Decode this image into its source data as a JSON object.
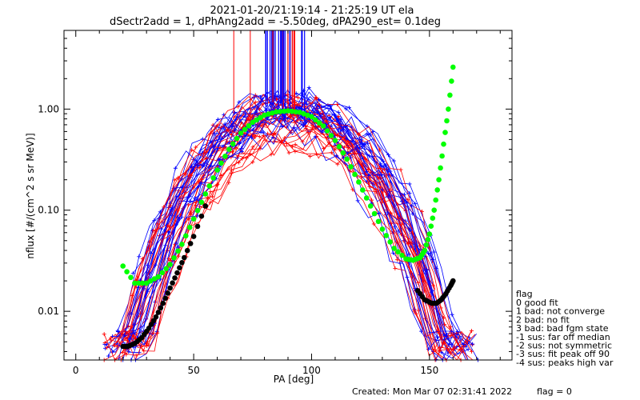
{
  "chart_data": {
    "type": "line",
    "title_line1": "2021-01-20/21:19:14 - 21:25:19 UT ela",
    "title_line2": "dSectr2add = 1, dPhAng2add = -5.50deg, dPA290_est=    0.1deg",
    "xlabel": "PA [deg]",
    "ylabel": "nflux [#/(cm^2 s sr MeV)]",
    "xlim": [
      -5,
      185
    ],
    "ylim": [
      0.0033,
      6.0
    ],
    "yscale": "log",
    "x_ticks": [
      0,
      50,
      100,
      150
    ],
    "x_tick_labels": [
      "0",
      "50",
      "100",
      "150"
    ],
    "y_ticks": [
      0.01,
      0.1,
      1.0
    ],
    "y_tick_labels": [
      "0.01",
      "0.10",
      "1.00"
    ],
    "colors": {
      "red_traces": "#ff0000",
      "blue_traces": "#0000ff",
      "green_fit": "#00ff00",
      "black_fit": "#000000"
    },
    "series": [
      {
        "color_name": "green",
        "style": "dots",
        "x": [
          20,
          25,
          30,
          35,
          40,
          45,
          50,
          55,
          60,
          65,
          70,
          75,
          80,
          85,
          90,
          95,
          100,
          105,
          110,
          115,
          120,
          125,
          130,
          135,
          140,
          143,
          146,
          148,
          150,
          152,
          154,
          156,
          158,
          160
        ],
        "y": [
          0.028,
          0.019,
          0.019,
          0.022,
          0.029,
          0.046,
          0.082,
          0.145,
          0.25,
          0.4,
          0.58,
          0.74,
          0.87,
          0.94,
          0.96,
          0.93,
          0.84,
          0.68,
          0.49,
          0.32,
          0.19,
          0.11,
          0.065,
          0.042,
          0.033,
          0.032,
          0.034,
          0.04,
          0.058,
          0.1,
          0.2,
          0.45,
          1.0,
          2.6
        ]
      },
      {
        "color_name": "black",
        "style": "dots",
        "x": [
          20,
          22,
          25,
          28,
          31,
          34,
          37,
          40,
          43,
          46,
          50,
          55
        ],
        "y": [
          0.0045,
          0.0045,
          0.0048,
          0.0055,
          0.0068,
          0.0088,
          0.012,
          0.017,
          0.024,
          0.034,
          0.055,
          0.11
        ]
      },
      {
        "color_name": "black",
        "style": "dots",
        "x": [
          145,
          148,
          151,
          153,
          155,
          157,
          159,
          160
        ],
        "y": [
          0.016,
          0.013,
          0.012,
          0.012,
          0.013,
          0.015,
          0.018,
          0.02
        ]
      }
    ],
    "legend_title": "flag",
    "legend": [
      "0 good fit",
      "1 bad: not converge",
      "2 bad: no fit",
      "3 bad: bad fgm state",
      "-1 sus: far off median",
      "-2 sus: not symmetric",
      "-3 sus: fit peak off 90",
      "-4 sus: peaks high var"
    ],
    "footer_created": "Created: Mon Mar 07 02:31:41 2022",
    "footer_flag": "flag = 0"
  }
}
